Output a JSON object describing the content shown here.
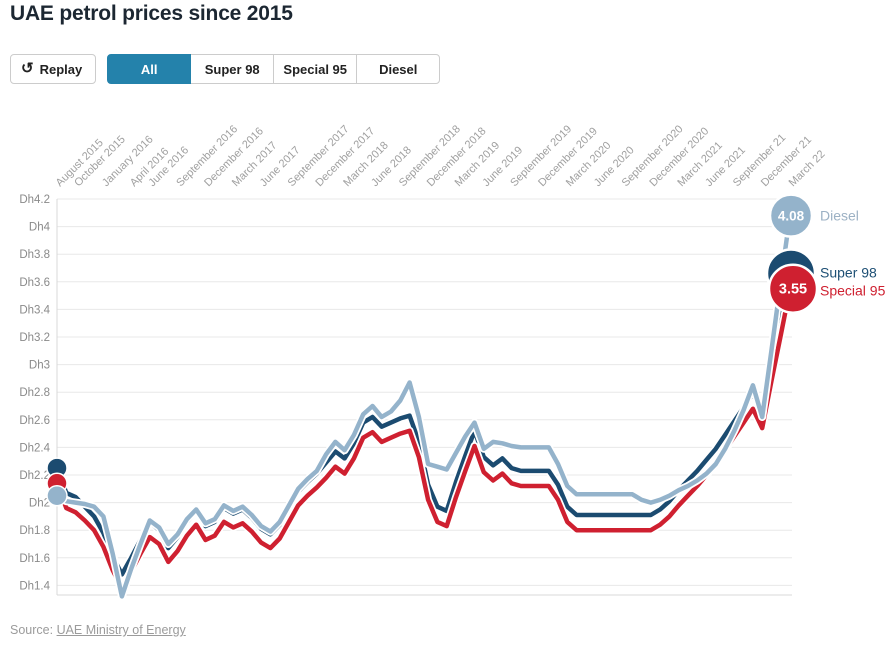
{
  "title": "UAE petrol prices since 2015",
  "controls": {
    "replay_label": "Replay",
    "replay_icon": "↺",
    "tabs": [
      {
        "label": "All",
        "active": true
      },
      {
        "label": "Super 98",
        "active": false
      },
      {
        "label": "Special 95",
        "active": false
      },
      {
        "label": "Diesel",
        "active": false
      }
    ]
  },
  "source": {
    "prefix": "Source: ",
    "link_text": "UAE Ministry of Energy"
  },
  "colors": {
    "accent": "#2482ab",
    "super98": "#1b4b70",
    "special95": "#cf2030",
    "diesel": "#94b3cb",
    "grid": "#e8e8e8",
    "axis": "#d9d9d9",
    "y_label": "#8a8a8a",
    "x_label": "#a0a0a0"
  },
  "chart_data": {
    "type": "line",
    "title": "UAE petrol prices since 2015",
    "currency_prefix": "Dh",
    "grid": "horizontal",
    "legend_position": "end-of-line",
    "ylim": [
      1.33,
      4.2
    ],
    "ytick_values": [
      4.2,
      4.0,
      3.8,
      3.6,
      3.4,
      3.2,
      3.0,
      2.8,
      2.6,
      2.4,
      2.2,
      2.0,
      1.8,
      1.6,
      1.4
    ],
    "ytick_labels": [
      "Dh4.2",
      "Dh4",
      "Dh3.8",
      "Dh3.6",
      "Dh3.4",
      "Dh3.2",
      "Dh3",
      "Dh2.8",
      "Dh2.6",
      "Dh2.4",
      "Dh2.2",
      "Dh2",
      "Dh1.8",
      "Dh1.6",
      "Dh1.4"
    ],
    "x_tick_indices": [
      0,
      2,
      5,
      8,
      10,
      13,
      16,
      19,
      22,
      25,
      28,
      31,
      34,
      37,
      40,
      43,
      46,
      49,
      52,
      55,
      58,
      61,
      64,
      67,
      70,
      73,
      76,
      79
    ],
    "x_tick_labels": [
      "August 2015",
      "October 2015",
      "January 2016",
      "April 2016",
      "June 2016",
      "September 2016",
      "December 2016",
      "March 2017",
      "June 2017",
      "September 2017",
      "December 2017",
      "March 2018",
      "June 2018",
      "September 2018",
      "December 2018",
      "March 2019",
      "June 2019",
      "September 2019",
      "December 2019",
      "March 2020",
      "June 2020",
      "September 2020",
      "December 2020",
      "March 2021",
      "June 2021",
      "September 21",
      "December 21",
      "March 22"
    ],
    "months": [
      "2015-08",
      "2015-09",
      "2015-10",
      "2015-11",
      "2015-12",
      "2016-01",
      "2016-02",
      "2016-03",
      "2016-04",
      "2016-05",
      "2016-06",
      "2016-07",
      "2016-08",
      "2016-09",
      "2016-10",
      "2016-11",
      "2016-12",
      "2017-01",
      "2017-02",
      "2017-03",
      "2017-04",
      "2017-05",
      "2017-06",
      "2017-07",
      "2017-08",
      "2017-09",
      "2017-10",
      "2017-11",
      "2017-12",
      "2018-01",
      "2018-02",
      "2018-03",
      "2018-04",
      "2018-05",
      "2018-06",
      "2018-07",
      "2018-08",
      "2018-09",
      "2018-10",
      "2018-11",
      "2018-12",
      "2019-01",
      "2019-02",
      "2019-03",
      "2019-04",
      "2019-05",
      "2019-06",
      "2019-07",
      "2019-08",
      "2019-09",
      "2019-10",
      "2019-11",
      "2019-12",
      "2020-01",
      "2020-02",
      "2020-03",
      "2020-04",
      "2020-05",
      "2020-06",
      "2020-07",
      "2020-08",
      "2020-09",
      "2020-10",
      "2020-11",
      "2020-12",
      "2021-01",
      "2021-02",
      "2021-03",
      "2021-04",
      "2021-05",
      "2021-06",
      "2021-07",
      "2021-08",
      "2021-09",
      "2021-10",
      "2021-11",
      "2021-12",
      "2022-01",
      "2022-02",
      "2022-03"
    ],
    "series": [
      {
        "name": "Super 98",
        "color": "#1b4b70",
        "label_color": "#1d4f74",
        "end_value_label": null,
        "values": [
          2.25,
          2.07,
          2.04,
          1.97,
          1.9,
          1.78,
          1.61,
          1.48,
          1.6,
          1.73,
          1.86,
          1.8,
          1.67,
          1.75,
          1.86,
          1.94,
          1.83,
          1.86,
          1.96,
          1.92,
          1.95,
          1.89,
          1.81,
          1.77,
          1.84,
          1.96,
          2.08,
          2.15,
          2.21,
          2.29,
          2.37,
          2.32,
          2.43,
          2.58,
          2.62,
          2.55,
          2.58,
          2.61,
          2.63,
          2.44,
          2.13,
          1.97,
          1.94,
          2.15,
          2.34,
          2.52,
          2.33,
          2.27,
          2.32,
          2.25,
          2.23,
          2.23,
          2.23,
          2.23,
          2.13,
          1.97,
          1.91,
          1.91,
          1.91,
          1.91,
          1.91,
          1.91,
          1.91,
          1.91,
          1.91,
          1.95,
          2.01,
          2.09,
          2.16,
          2.23,
          2.31,
          2.39,
          2.49,
          2.59,
          2.69,
          2.79,
          2.65,
          2.99,
          3.32,
          3.66
        ]
      },
      {
        "name": "Special 95",
        "color": "#cf2030",
        "label_color": "#cf2030",
        "end_value_label": "3.55",
        "values": [
          2.14,
          1.96,
          1.93,
          1.87,
          1.8,
          1.68,
          1.51,
          1.38,
          1.5,
          1.63,
          1.75,
          1.7,
          1.57,
          1.65,
          1.76,
          1.84,
          1.73,
          1.76,
          1.86,
          1.82,
          1.85,
          1.79,
          1.71,
          1.67,
          1.74,
          1.86,
          1.98,
          2.05,
          2.11,
          2.18,
          2.26,
          2.21,
          2.32,
          2.47,
          2.51,
          2.44,
          2.47,
          2.5,
          2.52,
          2.33,
          2.02,
          1.86,
          1.83,
          2.04,
          2.23,
          2.41,
          2.22,
          2.16,
          2.21,
          2.14,
          2.12,
          2.12,
          2.12,
          2.12,
          2.02,
          1.86,
          1.8,
          1.8,
          1.8,
          1.8,
          1.8,
          1.8,
          1.8,
          1.8,
          1.8,
          1.84,
          1.9,
          1.98,
          2.05,
          2.12,
          2.2,
          2.28,
          2.38,
          2.48,
          2.58,
          2.68,
          2.54,
          2.88,
          3.21,
          3.55
        ]
      },
      {
        "name": "Diesel",
        "color": "#94b3cb",
        "label_color": "#9cb1c4",
        "end_value_label": "4.08",
        "values": [
          2.05,
          2.01,
          2.0,
          1.99,
          1.97,
          1.9,
          1.63,
          1.32,
          1.52,
          1.7,
          1.87,
          1.82,
          1.7,
          1.77,
          1.88,
          1.95,
          1.85,
          1.88,
          1.98,
          1.94,
          1.97,
          1.91,
          1.83,
          1.79,
          1.86,
          1.98,
          2.1,
          2.17,
          2.23,
          2.35,
          2.44,
          2.38,
          2.49,
          2.64,
          2.7,
          2.62,
          2.66,
          2.74,
          2.87,
          2.62,
          2.28,
          2.26,
          2.24,
          2.36,
          2.48,
          2.58,
          2.39,
          2.44,
          2.43,
          2.41,
          2.4,
          2.4,
          2.4,
          2.4,
          2.28,
          2.12,
          2.06,
          2.06,
          2.06,
          2.06,
          2.06,
          2.06,
          2.06,
          2.02,
          2.0,
          2.02,
          2.05,
          2.09,
          2.12,
          2.16,
          2.21,
          2.28,
          2.39,
          2.52,
          2.67,
          2.85,
          2.62,
          3.1,
          3.6,
          4.08
        ]
      }
    ]
  }
}
